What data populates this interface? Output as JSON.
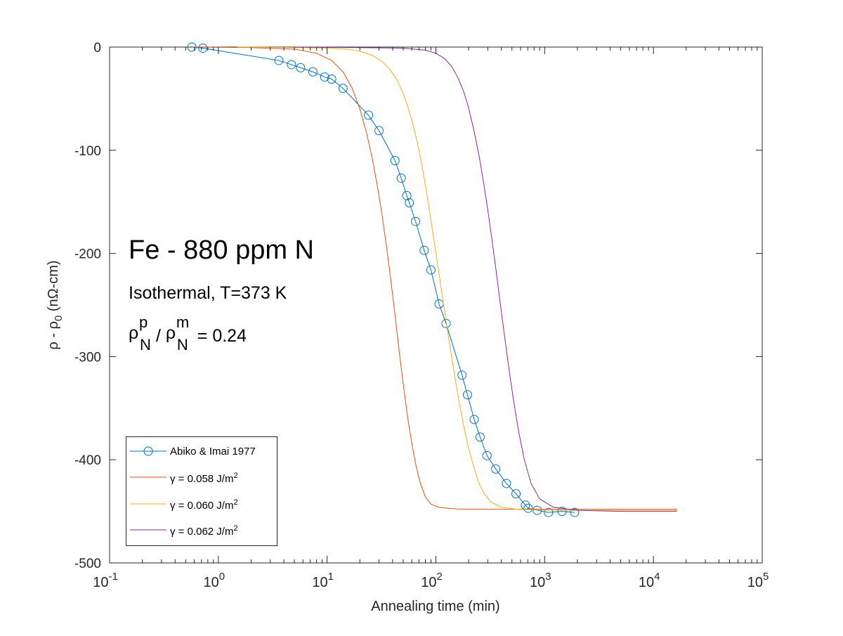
{
  "annotations": {
    "title": "Fe - 880 ppm N",
    "subtitle": "Isothermal, T=373 K",
    "ratio": {
      "symbol": "ρ",
      "num_sup": "p",
      "num_sub": "N",
      "sep": " / ",
      "den_sup": "m",
      "den_sub": "N",
      "value": " = 0.24"
    }
  },
  "legend_entries": [
    {
      "label": "Abiko & Imai 1977",
      "unit": "",
      "unit_sup": "",
      "color": "#0072BD",
      "marker": "circle"
    },
    {
      "label": "γ = 0.058 J/m",
      "unit": "",
      "unit_sup": "2",
      "color": "#D95319",
      "marker": "none"
    },
    {
      "label": "γ = 0.060 J/m",
      "unit": "",
      "unit_sup": "2",
      "color": "#EDB120",
      "marker": "none"
    },
    {
      "label": "γ = 0.062 J/m",
      "unit": "",
      "unit_sup": "2",
      "color": "#7E2F8E",
      "marker": "none"
    }
  ],
  "chart_data": {
    "type": "line",
    "title": "",
    "xlabel": "Annealing time (min)",
    "ylabel": "ρ - ρ0 (nΩ-cm)",
    "ylabel_parts": {
      "before": "ρ - ρ",
      "sub": "0",
      "after": " (nΩ-cm)"
    },
    "x_scale": "log",
    "xlim": [
      0.1,
      100000
    ],
    "ylim": [
      -500,
      0
    ],
    "x_ticks": [
      {
        "value": 0.1,
        "base": "10",
        "exp": "-1"
      },
      {
        "value": 1,
        "base": "10",
        "exp": "0"
      },
      {
        "value": 10,
        "base": "10",
        "exp": "1"
      },
      {
        "value": 100,
        "base": "10",
        "exp": "2"
      },
      {
        "value": 1000,
        "base": "10",
        "exp": "3"
      },
      {
        "value": 10000,
        "base": "10",
        "exp": "4"
      },
      {
        "value": 100000,
        "base": "10",
        "exp": "5"
      }
    ],
    "y_ticks": [
      {
        "value": 0,
        "label": "0"
      },
      {
        "value": -100,
        "label": "-100"
      },
      {
        "value": -200,
        "label": "-200"
      },
      {
        "value": -300,
        "label": "-300"
      },
      {
        "value": -400,
        "label": "-400"
      },
      {
        "value": -500,
        "label": "-500"
      }
    ],
    "grid": false,
    "legend_position": "bottom-left",
    "series": [
      {
        "name": "Abiko & Imai 1977",
        "color": "#0072BD",
        "marker": "circle",
        "x": [
          0.57,
          0.72,
          3.6,
          4.7,
          5.7,
          7.4,
          9.5,
          11,
          14,
          24,
          30,
          42,
          48,
          54,
          57,
          65,
          78,
          90,
          107,
          124,
          174,
          195,
          225,
          255,
          295,
          355,
          445,
          545,
          665,
          705,
          855,
          1085,
          1445,
          1885
        ],
        "y": [
          0,
          -1,
          -13,
          -17,
          -20,
          -24,
          -29,
          -31,
          -40,
          -66,
          -81,
          -110,
          -127,
          -144,
          -151,
          -169,
          -197,
          -216,
          -249,
          -268,
          -318,
          -337,
          -361,
          -378,
          -396,
          -409,
          -423,
          -433,
          -444,
          -447,
          -449,
          -451,
          -450,
          -451
        ]
      },
      {
        "name": "γ = 0.058 J/m2",
        "color": "#D95319",
        "marker": "none",
        "x": [
          0.6,
          2,
          5,
          8,
          11,
          14,
          17,
          20,
          23,
          26,
          29,
          32,
          35,
          38,
          42,
          46,
          50,
          55,
          60,
          66,
          72,
          80,
          90,
          105,
          130,
          170,
          250,
          500,
          1000,
          5000,
          16500
        ],
        "y": [
          0,
          -0.5,
          -2,
          -6,
          -13,
          -24,
          -40,
          -60,
          -83,
          -108,
          -135,
          -163,
          -192,
          -221,
          -259,
          -295,
          -326,
          -359,
          -384,
          -407,
          -423,
          -436,
          -443,
          -446,
          -447,
          -448,
          -448,
          -448,
          -448,
          -448,
          -448
        ]
      },
      {
        "name": "γ = 0.060 J/m2",
        "color": "#EDB120",
        "marker": "none",
        "x": [
          1.5,
          5,
          10,
          15,
          20,
          26,
          32,
          38,
          44,
          50,
          56,
          62,
          68,
          74,
          80,
          88,
          96,
          105,
          115,
          125,
          138,
          150,
          165,
          180,
          200,
          220,
          245,
          275,
          320,
          400,
          550,
          1000,
          5000,
          16500
        ],
        "y": [
          0,
          -0.5,
          -1,
          -2,
          -4,
          -8,
          -14,
          -22,
          -32,
          -45,
          -60,
          -76,
          -94,
          -113,
          -134,
          -161,
          -187,
          -214,
          -243,
          -268,
          -297,
          -321,
          -346,
          -367,
          -389,
          -405,
          -421,
          -432,
          -441,
          -446,
          -448,
          -449,
          -449,
          -449
        ]
      },
      {
        "name": "γ = 0.062 J/m2",
        "color": "#7E2F8E",
        "marker": "none",
        "x": [
          5,
          20,
          50,
          80,
          100,
          120,
          140,
          160,
          180,
          200,
          225,
          250,
          275,
          300,
          330,
          360,
          400,
          440,
          480,
          520,
          580,
          650,
          750,
          900,
          1200,
          2000,
          5000,
          16500
        ],
        "y": [
          0,
          -0.5,
          -1,
          -3,
          -6,
          -11,
          -19,
          -30,
          -43,
          -59,
          -82,
          -106,
          -132,
          -158,
          -189,
          -219,
          -257,
          -290,
          -319,
          -344,
          -374,
          -400,
          -423,
          -438,
          -446,
          -449,
          -450,
          -450
        ]
      }
    ]
  }
}
